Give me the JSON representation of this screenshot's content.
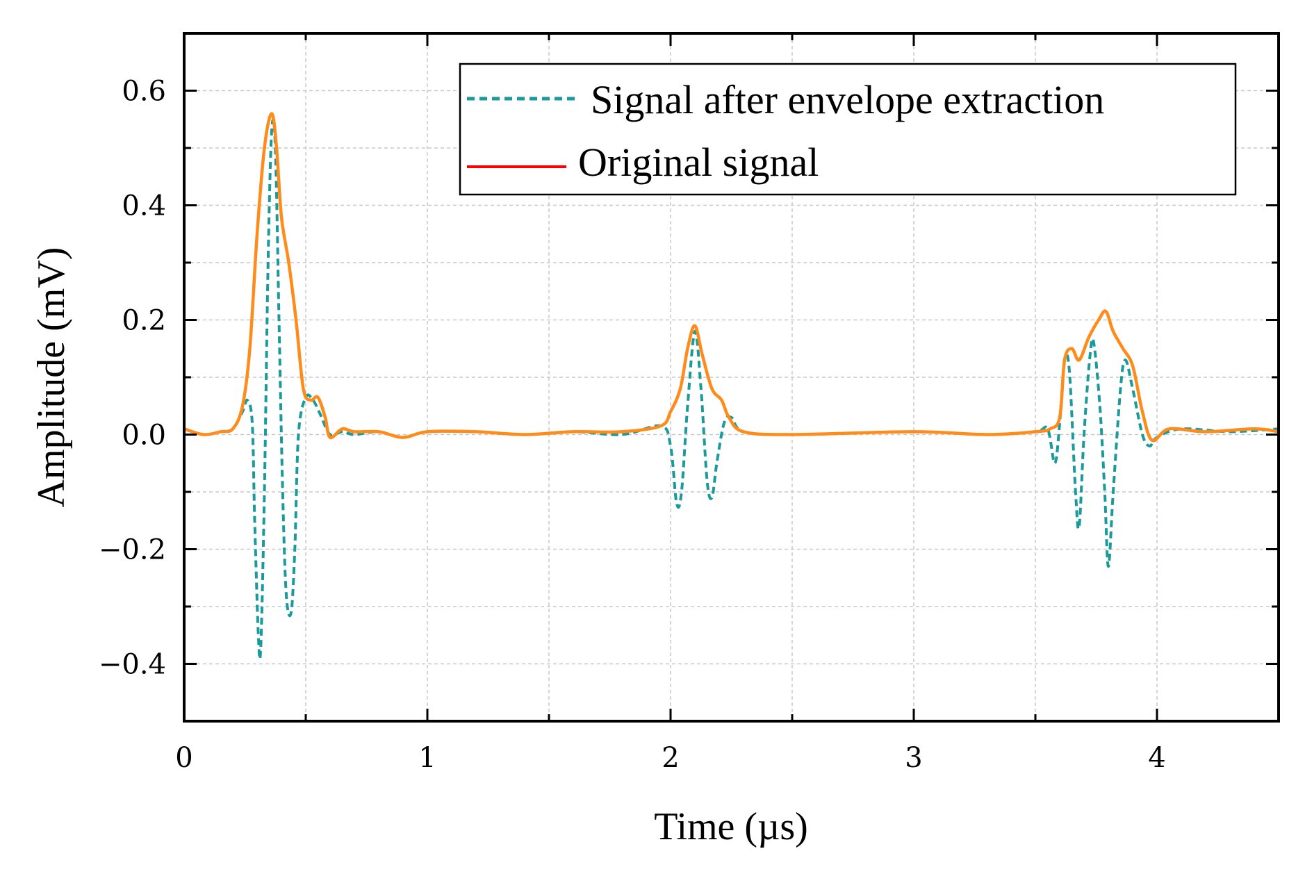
{
  "chart_data": {
    "type": "line",
    "xlabel": "Time (µs)",
    "ylabel": "Amplitude (mV)",
    "xlim": [
      0,
      4.5
    ],
    "ylim": [
      -0.5,
      0.7
    ],
    "x_ticks": [
      {
        "value": 0,
        "label": "0"
      },
      {
        "value": 1,
        "label": "1"
      },
      {
        "value": 2,
        "label": "2"
      },
      {
        "value": 3,
        "label": "3"
      },
      {
        "value": 4,
        "label": "4"
      }
    ],
    "y_ticks": [
      {
        "value": -0.4,
        "label": "−0.4"
      },
      {
        "value": -0.2,
        "label": "−0.2"
      },
      {
        "value": 0.0,
        "label": "0.0"
      },
      {
        "value": 0.2,
        "label": "0.2"
      },
      {
        "value": 0.4,
        "label": "0.4"
      },
      {
        "value": 0.6,
        "label": "0.6"
      }
    ],
    "x_minor_ticks": [
      0.5,
      1.5,
      2.5,
      3.5
    ],
    "y_minor_ticks": [
      -0.3,
      -0.1,
      0.1,
      0.3,
      0.5
    ],
    "grid": true,
    "legend_position": "top-right",
    "series": [
      {
        "name": "Signal after envelope extraction",
        "color": "#1a9a9a",
        "style": "dashed",
        "points": [
          [
            0.0,
            0.01
          ],
          [
            0.08,
            0.0
          ],
          [
            0.15,
            0.005
          ],
          [
            0.2,
            0.01
          ],
          [
            0.24,
            0.04
          ],
          [
            0.26,
            0.06
          ],
          [
            0.28,
            0.02
          ],
          [
            0.29,
            -0.15
          ],
          [
            0.305,
            -0.35
          ],
          [
            0.315,
            -0.37
          ],
          [
            0.33,
            -0.1
          ],
          [
            0.345,
            0.3
          ],
          [
            0.36,
            0.53
          ],
          [
            0.375,
            0.5
          ],
          [
            0.39,
            0.2
          ],
          [
            0.405,
            -0.1
          ],
          [
            0.42,
            -0.28
          ],
          [
            0.44,
            -0.31
          ],
          [
            0.455,
            -0.2
          ],
          [
            0.47,
            0.0
          ],
          [
            0.5,
            0.065
          ],
          [
            0.53,
            0.06
          ],
          [
            0.56,
            0.035
          ],
          [
            0.6,
            0.0
          ],
          [
            0.65,
            0.005
          ],
          [
            0.7,
            0.0
          ],
          [
            0.8,
            0.005
          ],
          [
            0.9,
            -0.005
          ],
          [
            1.0,
            0.005
          ],
          [
            1.2,
            0.005
          ],
          [
            1.4,
            0.0
          ],
          [
            1.6,
            0.005
          ],
          [
            1.8,
            0.0
          ],
          [
            1.96,
            0.015
          ],
          [
            2.0,
            -0.02
          ],
          [
            2.025,
            -0.12
          ],
          [
            2.045,
            -0.1
          ],
          [
            2.07,
            0.05
          ],
          [
            2.1,
            0.18
          ],
          [
            2.125,
            0.08
          ],
          [
            2.15,
            -0.08
          ],
          [
            2.17,
            -0.11
          ],
          [
            2.19,
            -0.05
          ],
          [
            2.22,
            0.02
          ],
          [
            2.25,
            0.03
          ],
          [
            2.3,
            0.005
          ],
          [
            2.5,
            0.0
          ],
          [
            3.0,
            0.005
          ],
          [
            3.3,
            0.0
          ],
          [
            3.5,
            0.005
          ],
          [
            3.55,
            0.01
          ],
          [
            3.58,
            -0.05
          ],
          [
            3.6,
            0.02
          ],
          [
            3.62,
            0.13
          ],
          [
            3.64,
            0.11
          ],
          [
            3.665,
            -0.1
          ],
          [
            3.68,
            -0.16
          ],
          [
            3.7,
            0.0
          ],
          [
            3.725,
            0.14
          ],
          [
            3.74,
            0.16
          ],
          [
            3.765,
            0.05
          ],
          [
            3.785,
            -0.1
          ],
          [
            3.8,
            -0.23
          ],
          [
            3.82,
            -0.1
          ],
          [
            3.85,
            0.08
          ],
          [
            3.87,
            0.13
          ],
          [
            3.9,
            0.08
          ],
          [
            3.94,
            0.0
          ],
          [
            3.97,
            -0.02
          ],
          [
            4.0,
            -0.005
          ],
          [
            4.1,
            0.01
          ],
          [
            4.3,
            0.005
          ],
          [
            4.5,
            0.01
          ]
        ]
      },
      {
        "name": "Original signal",
        "color": "#ff8c1a",
        "legend_color": "#ff0000",
        "style": "solid",
        "points": [
          [
            0.0,
            0.01
          ],
          [
            0.08,
            0.0
          ],
          [
            0.15,
            0.005
          ],
          [
            0.2,
            0.01
          ],
          [
            0.24,
            0.05
          ],
          [
            0.27,
            0.15
          ],
          [
            0.3,
            0.35
          ],
          [
            0.33,
            0.5
          ],
          [
            0.36,
            0.56
          ],
          [
            0.38,
            0.5
          ],
          [
            0.4,
            0.38
          ],
          [
            0.43,
            0.3
          ],
          [
            0.46,
            0.2
          ],
          [
            0.49,
            0.08
          ],
          [
            0.52,
            0.06
          ],
          [
            0.55,
            0.065
          ],
          [
            0.58,
            0.03
          ],
          [
            0.6,
            -0.005
          ],
          [
            0.65,
            0.01
          ],
          [
            0.7,
            0.005
          ],
          [
            0.8,
            0.005
          ],
          [
            0.9,
            -0.005
          ],
          [
            1.0,
            0.005
          ],
          [
            1.2,
            0.005
          ],
          [
            1.4,
            0.0
          ],
          [
            1.6,
            0.005
          ],
          [
            1.8,
            0.005
          ],
          [
            1.96,
            0.015
          ],
          [
            2.0,
            0.04
          ],
          [
            2.04,
            0.08
          ],
          [
            2.07,
            0.15
          ],
          [
            2.1,
            0.19
          ],
          [
            2.13,
            0.14
          ],
          [
            2.17,
            0.08
          ],
          [
            2.21,
            0.06
          ],
          [
            2.24,
            0.03
          ],
          [
            2.3,
            0.005
          ],
          [
            2.5,
            0.0
          ],
          [
            3.0,
            0.005
          ],
          [
            3.3,
            0.0
          ],
          [
            3.5,
            0.005
          ],
          [
            3.56,
            0.01
          ],
          [
            3.6,
            0.03
          ],
          [
            3.62,
            0.13
          ],
          [
            3.65,
            0.15
          ],
          [
            3.68,
            0.13
          ],
          [
            3.72,
            0.17
          ],
          [
            3.76,
            0.2
          ],
          [
            3.79,
            0.215
          ],
          [
            3.82,
            0.18
          ],
          [
            3.86,
            0.15
          ],
          [
            3.9,
            0.12
          ],
          [
            3.94,
            0.04
          ],
          [
            3.98,
            -0.01
          ],
          [
            4.05,
            0.01
          ],
          [
            4.2,
            0.005
          ],
          [
            4.4,
            0.01
          ],
          [
            4.5,
            0.005
          ]
        ]
      }
    ]
  }
}
